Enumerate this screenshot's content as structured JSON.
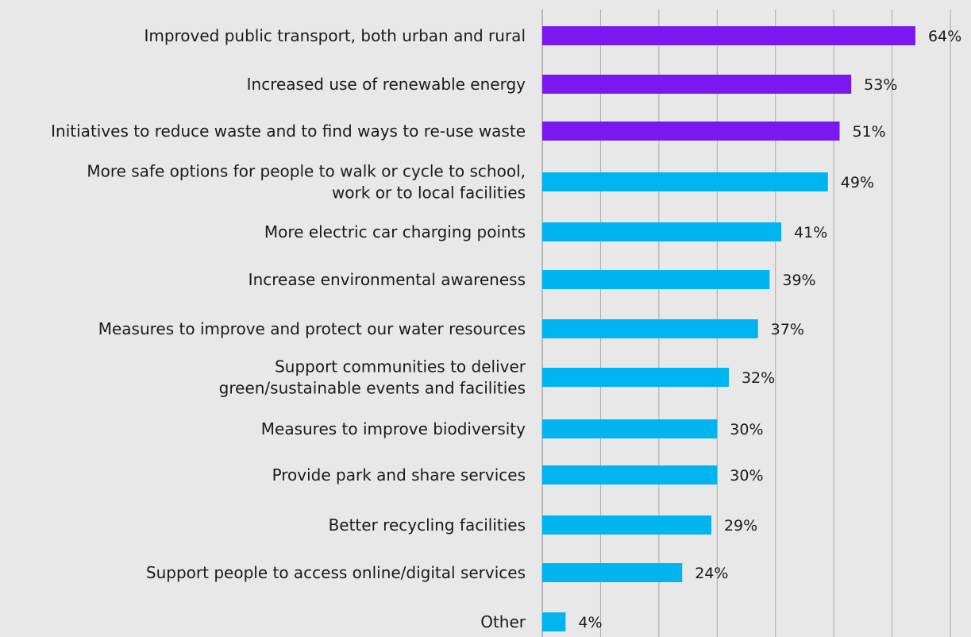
{
  "chart_data": {
    "type": "bar",
    "orientation": "horizontal",
    "categories": [
      [
        "Improved public transport, both urban and rural"
      ],
      [
        "Increased use of renewable energy"
      ],
      [
        "Initiatives to reduce waste and to find ways to re-use waste"
      ],
      [
        "More safe options for people to walk or cycle to school,",
        "work or to local facilities"
      ],
      [
        "More electric car charging points"
      ],
      [
        "Increase environmental awareness"
      ],
      [
        "Measures to improve and protect our water resources"
      ],
      [
        "Support communities to deliver",
        "green/sustainable events and facilities"
      ],
      [
        "Measures to improve biodiversity"
      ],
      [
        "Provide park and share services"
      ],
      [
        "Better recycling facilities"
      ],
      [
        "Support people to access online/digital services"
      ],
      [
        "Other"
      ]
    ],
    "values": [
      64,
      53,
      51,
      49,
      41,
      39,
      37,
      32,
      30,
      30,
      29,
      24,
      4
    ],
    "value_labels": [
      "64%",
      "53%",
      "51%",
      "49%",
      "41%",
      "39%",
      "37%",
      "32%",
      "30%",
      "30%",
      "29%",
      "24%",
      "4%"
    ],
    "xlim": [
      0,
      70
    ],
    "grid": true,
    "colors": {
      "highlight": "#7a18f0",
      "default": "#00b4f0",
      "grid": "#a9a9a9",
      "background": "#e8e8e8"
    },
    "highlight_count": 3
  }
}
